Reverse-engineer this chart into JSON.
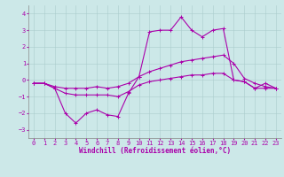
{
  "background_color": "#cce8e8",
  "grid_color": "#aacccc",
  "line_color": "#aa00aa",
  "marker": "+",
  "marker_size": 3,
  "marker_lw": 0.7,
  "line_width": 0.8,
  "xlim": [
    -0.5,
    23.5
  ],
  "ylim": [
    -3.5,
    4.5
  ],
  "yticks": [
    -3,
    -2,
    -1,
    0,
    1,
    2,
    3,
    4
  ],
  "xticks": [
    0,
    1,
    2,
    3,
    4,
    5,
    6,
    7,
    8,
    9,
    10,
    11,
    12,
    13,
    14,
    15,
    16,
    17,
    18,
    19,
    20,
    21,
    22,
    23
  ],
  "xlabel": "Windchill (Refroidissement éolien,°C)",
  "xlabel_fontsize": 5.5,
  "tick_fontsize": 5,
  "series": [
    [
      -0.2,
      -0.2,
      -0.5,
      -2.0,
      -2.6,
      -2.0,
      -1.8,
      -2.1,
      -2.2,
      -0.8,
      0.2,
      2.9,
      3.0,
      3.0,
      3.8,
      3.0,
      2.6,
      3.0,
      3.1,
      0.0,
      -0.1,
      -0.5,
      -0.2,
      -0.5
    ],
    [
      -0.2,
      -0.2,
      -0.4,
      -0.5,
      -0.5,
      -0.5,
      -0.4,
      -0.5,
      -0.4,
      -0.2,
      0.2,
      0.5,
      0.7,
      0.9,
      1.1,
      1.2,
      1.3,
      1.4,
      1.5,
      1.0,
      0.1,
      -0.2,
      -0.4,
      -0.5
    ],
    [
      -0.2,
      -0.2,
      -0.5,
      -0.8,
      -0.9,
      -0.9,
      -0.9,
      -0.9,
      -1.0,
      -0.7,
      -0.3,
      -0.1,
      0.0,
      0.1,
      0.2,
      0.3,
      0.3,
      0.4,
      0.4,
      0.0,
      -0.1,
      -0.5,
      -0.5,
      -0.5
    ]
  ]
}
